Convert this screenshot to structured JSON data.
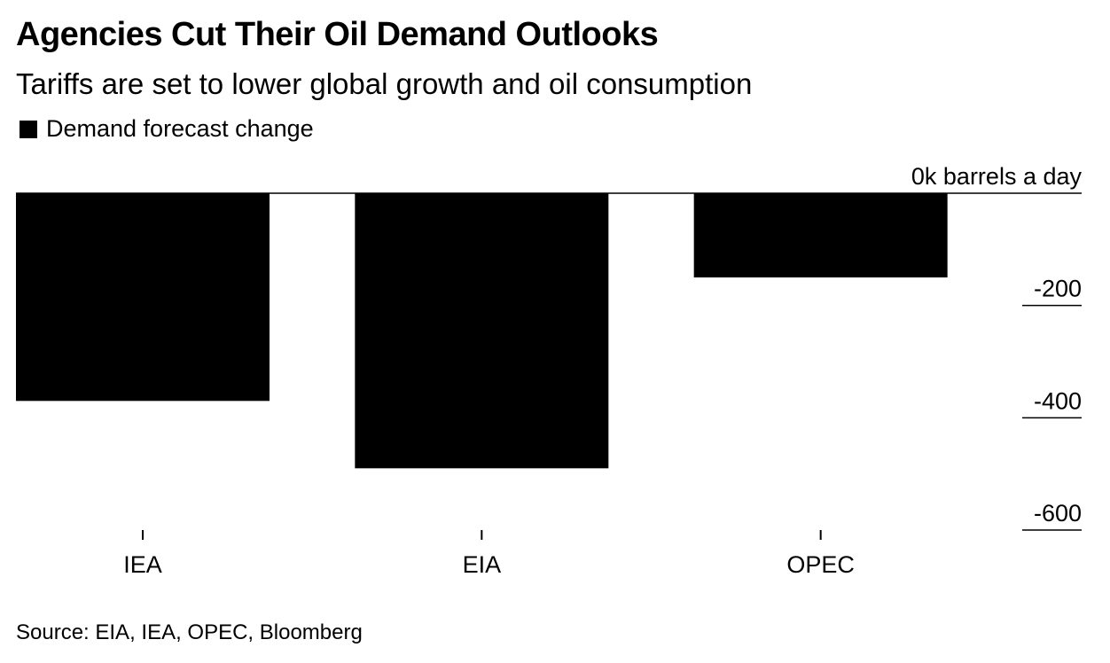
{
  "header": {
    "title": "Agencies Cut Their Oil Demand Outlooks",
    "subtitle": "Tariffs are set to lower global growth and oil consumption"
  },
  "legend": {
    "label": "Demand forecast change",
    "color": "#000000"
  },
  "footer": {
    "source": "Source: EIA, IEA, OPEC, Bloomberg"
  },
  "chart_data": {
    "type": "bar",
    "categories": [
      "IEA",
      "EIA",
      "OPEC"
    ],
    "series": [
      {
        "name": "Demand forecast change",
        "values": [
          -370,
          -490,
          -150
        ],
        "color": "#000000"
      }
    ],
    "unit": "k barrels a day",
    "ylim": [
      -600,
      0
    ],
    "y_ticks": [
      0,
      -200,
      -400,
      -600
    ],
    "y_tick_labels": [
      "0k barrels a day",
      "-200",
      "-400",
      "-600"
    ],
    "y_axis_side": "right",
    "grid": false
  }
}
